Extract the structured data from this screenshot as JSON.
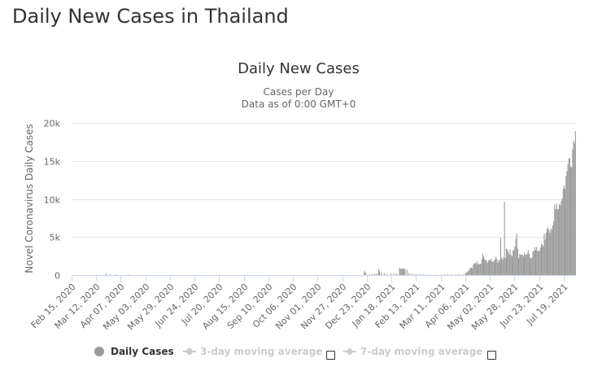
{
  "page": {
    "title": "Daily New Cases in Thailand"
  },
  "colors": {
    "bar": "#999999",
    "grid": "#e6e6e6",
    "axis_line": "#ccd6eb",
    "label": "#666666",
    "legend_active": "#333333",
    "legend_inactive": "#cccccc"
  },
  "legend": {
    "items": [
      {
        "label": "Daily Cases",
        "icon": "circle-marker",
        "active": true
      },
      {
        "label": "3-day moving average",
        "icon": "circle-line-marker",
        "active": false,
        "checkbox": false
      },
      {
        "label": "7-day moving average",
        "icon": "diamond-line-marker",
        "active": false,
        "checkbox": false
      }
    ]
  },
  "chart_data": {
    "type": "bar",
    "title": "Daily New Cases",
    "subtitle": [
      "Cases per Day",
      "Data as of 0:00 GMT+0"
    ],
    "xlabel": "",
    "ylabel": "Novel Coronavirus Daily Cases",
    "ylim": [
      0,
      20000
    ],
    "ytick_values": [
      0,
      5000,
      10000,
      15000,
      20000
    ],
    "ytick_labels": [
      "0",
      "5k",
      "10k",
      "15k",
      "20k"
    ],
    "grid": true,
    "legend_position": "bottom",
    "x_start": "2020-02-15",
    "x_end": "2021-07-31",
    "xtick_labels": [
      "Feb 15, 2020",
      "Mar 12, 2020",
      "Apr 07, 2020",
      "May 03, 2020",
      "May 29, 2020",
      "Jun 24, 2020",
      "Jul 20, 2020",
      "Aug 15, 2020",
      "Sep 10, 2020",
      "Oct 06, 2020",
      "Nov 01, 2020",
      "Nov 27, 2020",
      "Dec 23, 2020",
      "Jan 18, 2021",
      "Feb 13, 2021",
      "Mar 11, 2021",
      "Apr 06, 2021",
      "May 02, 2021",
      "May 28, 2021",
      "Jun 23, 2021",
      "Jul 19, 2021"
    ],
    "series": [
      {
        "name": "Daily Cases",
        "points": [
          [
            "2020-03-22",
            188
          ],
          [
            "2020-03-26",
            111
          ],
          [
            "2020-04-01",
            120
          ],
          [
            "2020-04-15",
            30
          ],
          [
            "2020-05-01",
            6
          ],
          [
            "2020-12-20",
            548
          ],
          [
            "2020-12-21",
            382
          ],
          [
            "2020-12-22",
            46
          ],
          [
            "2020-12-25",
            80
          ],
          [
            "2020-12-28",
            144
          ],
          [
            "2020-12-31",
            194
          ],
          [
            "2021-01-02",
            216
          ],
          [
            "2021-01-04",
            745
          ],
          [
            "2021-01-05",
            527
          ],
          [
            "2021-01-07",
            365
          ],
          [
            "2021-01-10",
            249
          ],
          [
            "2021-01-13",
            121
          ],
          [
            "2021-01-17",
            188
          ],
          [
            "2021-01-20",
            205
          ],
          [
            "2021-01-23",
            198
          ],
          [
            "2021-01-26",
            959
          ],
          [
            "2021-01-27",
            819
          ],
          [
            "2021-01-28",
            889
          ],
          [
            "2021-01-29",
            802
          ],
          [
            "2021-01-30",
            834
          ],
          [
            "2021-01-31",
            820
          ],
          [
            "2021-02-01",
            787
          ],
          [
            "2021-02-03",
            700
          ],
          [
            "2021-02-05",
            300
          ],
          [
            "2021-02-08",
            180
          ],
          [
            "2021-02-11",
            120
          ],
          [
            "2021-02-14",
            130
          ],
          [
            "2021-02-17",
            140
          ],
          [
            "2021-02-20",
            100
          ],
          [
            "2021-02-24",
            80
          ],
          [
            "2021-02-28",
            60
          ],
          [
            "2021-03-05",
            80
          ],
          [
            "2021-03-10",
            60
          ],
          [
            "2021-03-15",
            70
          ],
          [
            "2021-03-18",
            113
          ],
          [
            "2021-03-22",
            100
          ],
          [
            "2021-03-26",
            80
          ],
          [
            "2021-03-29",
            140
          ],
          [
            "2021-04-01",
            79
          ],
          [
            "2021-04-04",
            100
          ],
          [
            "2021-04-06",
            250
          ],
          [
            "2021-04-07",
            334
          ],
          [
            "2021-04-08",
            405
          ],
          [
            "2021-04-09",
            559
          ],
          [
            "2021-04-10",
            789
          ],
          [
            "2021-04-11",
            967
          ],
          [
            "2021-04-12",
            985
          ],
          [
            "2021-04-13",
            866
          ],
          [
            "2021-04-14",
            1335
          ],
          [
            "2021-04-15",
            1543
          ],
          [
            "2021-04-16",
            1582
          ],
          [
            "2021-04-17",
            1547
          ],
          [
            "2021-04-18",
            1767
          ],
          [
            "2021-04-19",
            1390
          ],
          [
            "2021-04-20",
            1443
          ],
          [
            "2021-04-21",
            1458
          ],
          [
            "2021-04-22",
            1470
          ],
          [
            "2021-04-23",
            2070
          ],
          [
            "2021-04-24",
            2839
          ],
          [
            "2021-04-25",
            2438
          ],
          [
            "2021-04-26",
            2048
          ],
          [
            "2021-04-27",
            2013
          ],
          [
            "2021-04-28",
            1871
          ],
          [
            "2021-04-29",
            1583
          ],
          [
            "2021-04-30",
            1940
          ],
          [
            "2021-05-01",
            1891
          ],
          [
            "2021-05-02",
            2041
          ],
          [
            "2021-05-03",
            2101
          ],
          [
            "2021-05-04",
            1763
          ],
          [
            "2021-05-05",
            1732
          ],
          [
            "2021-05-06",
            1911
          ],
          [
            "2021-05-07",
            2044
          ],
          [
            "2021-05-08",
            2419
          ],
          [
            "2021-05-09",
            2101
          ],
          [
            "2021-05-10",
            1630
          ],
          [
            "2021-05-11",
            1919
          ],
          [
            "2021-05-12",
            1983
          ],
          [
            "2021-05-13",
            4887
          ],
          [
            "2021-05-14",
            2256
          ],
          [
            "2021-05-15",
            2052
          ],
          [
            "2021-05-16",
            2302
          ],
          [
            "2021-05-17",
            9635
          ],
          [
            "2021-05-18",
            2256
          ],
          [
            "2021-05-19",
            3481
          ],
          [
            "2021-05-20",
            3394
          ],
          [
            "2021-05-21",
            3052
          ],
          [
            "2021-05-22",
            2713
          ],
          [
            "2021-05-23",
            3382
          ],
          [
            "2021-05-24",
            2631
          ],
          [
            "2021-05-25",
            2455
          ],
          [
            "2021-05-26",
            3226
          ],
          [
            "2021-05-27",
            3323
          ],
          [
            "2021-05-28",
            3759
          ],
          [
            "2021-05-29",
            4803
          ],
          [
            "2021-05-30",
            5485
          ],
          [
            "2021-05-31",
            3440
          ],
          [
            "2021-06-01",
            2230
          ],
          [
            "2021-06-02",
            2742
          ],
          [
            "2021-06-03",
            2704
          ],
          [
            "2021-06-04",
            2601
          ],
          [
            "2021-06-05",
            2671
          ],
          [
            "2021-06-06",
            2419
          ],
          [
            "2021-06-07",
            2938
          ],
          [
            "2021-06-08",
            2662
          ],
          [
            "2021-06-09",
            2680
          ],
          [
            "2021-06-10",
            2817
          ],
          [
            "2021-06-11",
            3277
          ],
          [
            "2021-06-12",
            2804
          ],
          [
            "2021-06-13",
            2290
          ],
          [
            "2021-06-14",
            2141
          ],
          [
            "2021-06-15",
            2331
          ],
          [
            "2021-06-16",
            3129
          ],
          [
            "2021-06-17",
            3174
          ],
          [
            "2021-06-18",
            3667
          ],
          [
            "2021-06-19",
            3309
          ],
          [
            "2021-06-20",
            3682
          ],
          [
            "2021-06-21",
            3175
          ],
          [
            "2021-06-22",
            3175
          ],
          [
            "2021-06-23",
            3174
          ],
          [
            "2021-06-24",
            3644
          ],
          [
            "2021-06-25",
            4108
          ],
          [
            "2021-06-26",
            3995
          ],
          [
            "2021-06-27",
            3813
          ],
          [
            "2021-06-28",
            5406
          ],
          [
            "2021-06-29",
            4664
          ],
          [
            "2021-06-30",
            5533
          ],
          [
            "2021-07-01",
            6087
          ],
          [
            "2021-07-02",
            6230
          ],
          [
            "2021-07-03",
            5916
          ],
          [
            "2021-07-04",
            5533
          ],
          [
            "2021-07-05",
            6166
          ],
          [
            "2021-07-06",
            5951
          ],
          [
            "2021-07-07",
            6519
          ],
          [
            "2021-07-08",
            7058
          ],
          [
            "2021-07-09",
            9276
          ],
          [
            "2021-07-10",
            8656
          ],
          [
            "2021-07-11",
            9418
          ],
          [
            "2021-07-12",
            8685
          ],
          [
            "2021-07-13",
            8656
          ],
          [
            "2021-07-14",
            9317
          ],
          [
            "2021-07-15",
            9186
          ],
          [
            "2021-07-16",
            9692
          ],
          [
            "2021-07-17",
            10082
          ],
          [
            "2021-07-18",
            11397
          ],
          [
            "2021-07-19",
            11784
          ],
          [
            "2021-07-20",
            11305
          ],
          [
            "2021-07-21",
            13002
          ],
          [
            "2021-07-22",
            13655
          ],
          [
            "2021-07-23",
            14575
          ],
          [
            "2021-07-24",
            15335
          ],
          [
            "2021-07-25",
            15376
          ],
          [
            "2021-07-26",
            14260
          ],
          [
            "2021-07-27",
            14150
          ],
          [
            "2021-07-28",
            16533
          ],
          [
            "2021-07-29",
            17669
          ],
          [
            "2021-07-30",
            17345
          ],
          [
            "2021-07-31",
            18912
          ]
        ]
      }
    ]
  }
}
